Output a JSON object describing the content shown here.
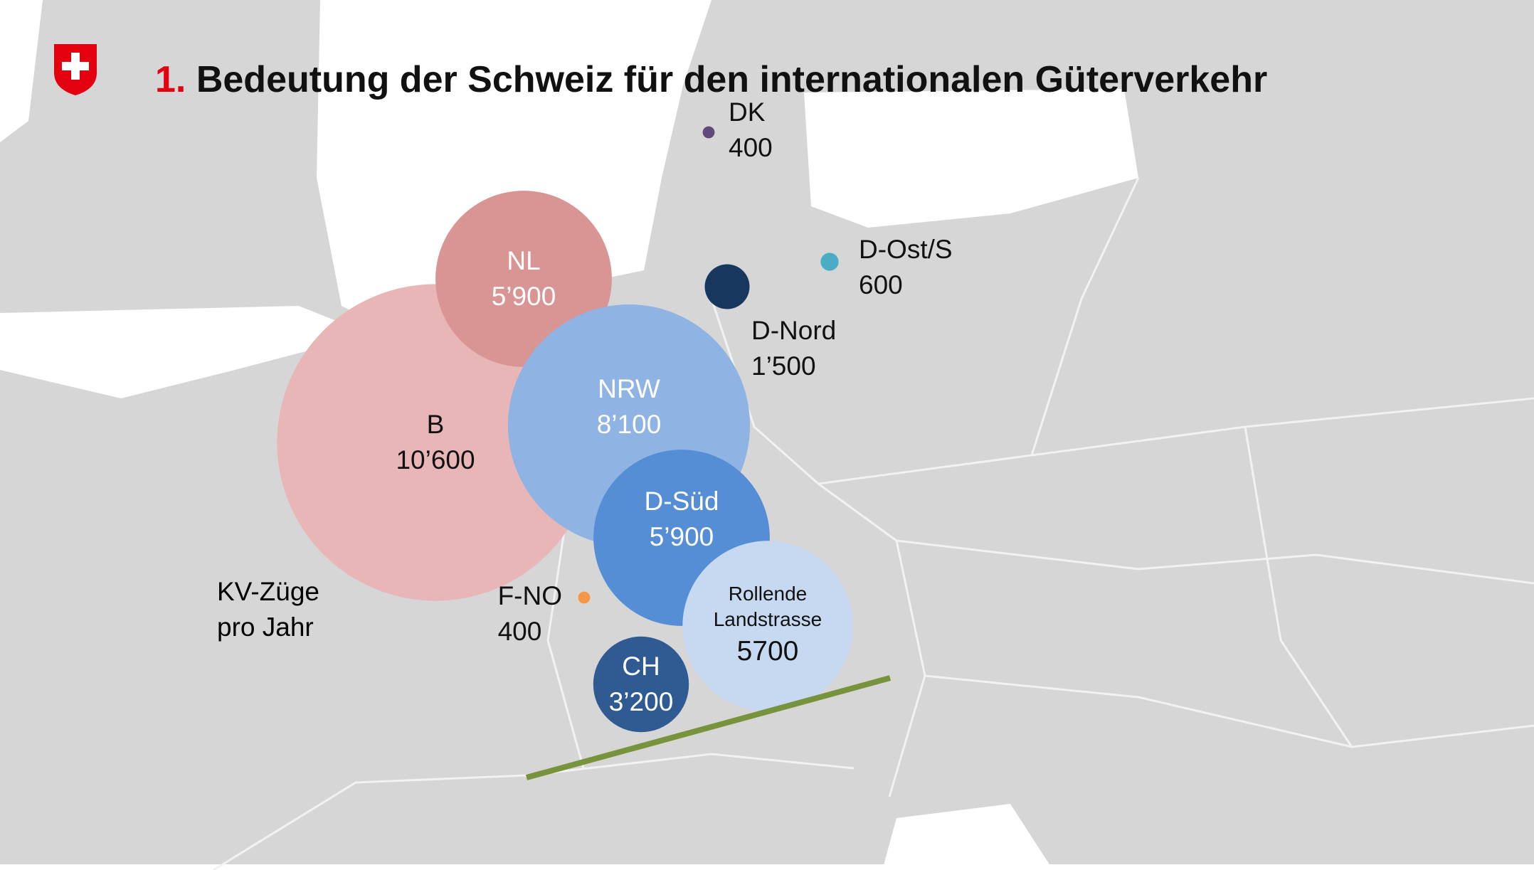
{
  "header": {
    "number": "1.",
    "title": "Bedeutung der Schweiz für den internationalen Güterverkehr"
  },
  "legend": "KV-Züge pro Jahr",
  "bubbles": [
    {
      "name": "B",
      "value": 10600,
      "value_label": "10’600",
      "color": "#e8b6b6"
    },
    {
      "name": "NL",
      "value": 5900,
      "value_label": "5’900",
      "color": "#d99494"
    },
    {
      "name": "NRW",
      "value": 8100,
      "value_label": "8’100",
      "color": "#8fb4e3"
    },
    {
      "name": "D-Süd",
      "value": 5900,
      "value_label": "5’900",
      "color": "#558ed5"
    },
    {
      "name": "CH",
      "value": 3200,
      "value_label": "3’200",
      "color": "#2f5b92"
    },
    {
      "name": "Rollende Landstrasse",
      "value": 5700,
      "value_label": "5700",
      "color": "#c6d9f1"
    },
    {
      "name": "D-Nord",
      "value": 1500,
      "value_label": "1’500",
      "color": "#17375e"
    },
    {
      "name": "DK",
      "value": 400,
      "value_label": "400",
      "color": "#604a7b"
    },
    {
      "name": "D-Ost/S",
      "value": 600,
      "value_label": "600",
      "color": "#4bacc6"
    },
    {
      "name": "F-NO",
      "value": 400,
      "value_label": "400",
      "color": "#f79646"
    }
  ]
}
